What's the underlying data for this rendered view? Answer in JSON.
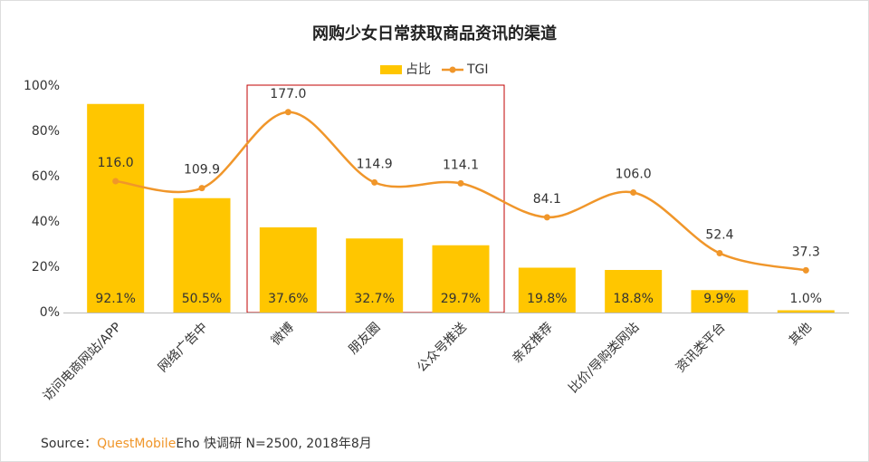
{
  "chart_data": {
    "type": "bar+line",
    "title": "网购少女日常获取商品资讯的渠道",
    "categories": [
      "访问电商网站/APP",
      "网络广告中",
      "微博",
      "朋友圈",
      "公众号推送",
      "亲友推荐",
      "比价/导购类网站",
      "资讯类平台",
      "其他"
    ],
    "series": [
      {
        "name": "占比",
        "type": "bar",
        "color": "#ffc600",
        "values": [
          92.1,
          50.5,
          37.6,
          32.7,
          29.7,
          19.8,
          18.8,
          9.9,
          1.0
        ],
        "value_labels": [
          "92.1%",
          "50.5%",
          "37.6%",
          "32.7%",
          "29.7%",
          "19.8%",
          "18.8%",
          "9.9%",
          "1.0%"
        ]
      },
      {
        "name": "TGI",
        "type": "line",
        "axis": "y2",
        "color": "#f0962a",
        "values": [
          116.0,
          109.9,
          177.0,
          114.9,
          114.1,
          84.1,
          106.0,
          52.4,
          37.3
        ],
        "value_labels": [
          "116.0",
          "109.9",
          "177.0",
          "114.9",
          "114.1",
          "84.1",
          "106.0",
          "52.4",
          "37.3"
        ]
      }
    ],
    "ylim": [
      0,
      100
    ],
    "yticks": [
      {
        "value": 0,
        "label": "0%"
      },
      {
        "value": 20,
        "label": "20%"
      },
      {
        "value": 40,
        "label": "40%"
      },
      {
        "value": 60,
        "label": "60%"
      },
      {
        "value": 80,
        "label": "80%"
      },
      {
        "value": 100,
        "label": "100%"
      }
    ],
    "y2lim": [
      0,
      200
    ],
    "grid": false,
    "legend": "top",
    "source": {
      "label": "Source：",
      "brand": "QuestMobile",
      "text": "Eho 快调研 N=2500, 2018年8月"
    }
  }
}
